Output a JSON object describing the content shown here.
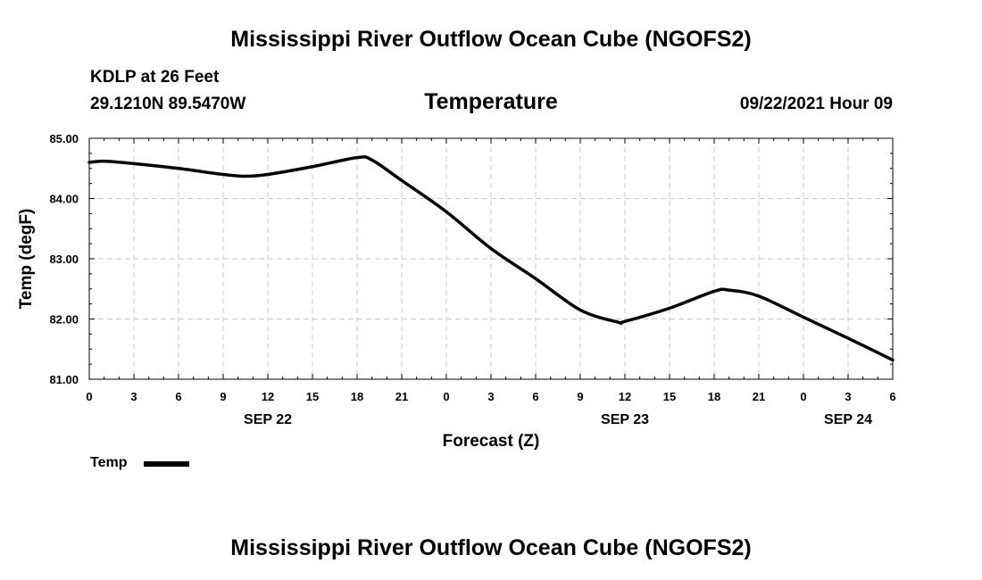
{
  "header": {
    "title": "Mississippi River Outflow Ocean Cube (NGOFS2)",
    "station": "KDLP at 26 Feet",
    "coords": "29.1210N  89.5470W",
    "variable": "Temperature",
    "datetime": "09/22/2021 Hour 09"
  },
  "footer": {
    "title": "Mississippi River Outflow Ocean Cube (NGOFS2)"
  },
  "legend": {
    "label": "Temp"
  },
  "chart_data": {
    "type": "line",
    "title": "Temperature",
    "xlabel": "Forecast (Z)",
    "ylabel": "Temp (degF)",
    "xlim": [
      0,
      54
    ],
    "ylim": [
      81.0,
      85.0
    ],
    "grid": true,
    "x_tick_values": [
      0,
      3,
      6,
      9,
      12,
      15,
      18,
      21,
      24,
      27,
      30,
      33,
      36,
      39,
      42,
      45,
      48,
      51,
      54
    ],
    "x_tick_labels": [
      "0",
      "3",
      "6",
      "9",
      "12",
      "15",
      "18",
      "21",
      "0",
      "3",
      "6",
      "9",
      "12",
      "15",
      "18",
      "21",
      "0",
      "3",
      "6"
    ],
    "date_labels": [
      {
        "hour": 12,
        "label": "SEP 22"
      },
      {
        "hour": 36,
        "label": "SEP 23"
      },
      {
        "hour": 51,
        "label": "SEP 24"
      }
    ],
    "y_tick_values": [
      81.0,
      82.0,
      83.0,
      84.0,
      85.0
    ],
    "y_tick_labels": [
      "81.00",
      "82.00",
      "83.00",
      "84.00",
      "85.00"
    ],
    "series": [
      {
        "name": "Temp",
        "color": "#000000",
        "x": [
          0,
          1,
          3,
          6,
          9,
          10.5,
          12,
          15,
          18,
          19,
          21,
          24,
          27,
          30,
          33,
          35.5,
          36,
          39,
          42,
          43,
          45,
          48,
          51,
          54
        ],
        "y": [
          84.6,
          84.62,
          84.58,
          84.5,
          84.4,
          84.37,
          84.4,
          84.53,
          84.68,
          84.64,
          84.3,
          83.78,
          83.17,
          82.67,
          82.15,
          81.95,
          81.96,
          82.18,
          82.46,
          82.48,
          82.38,
          82.03,
          81.68,
          81.32
        ]
      }
    ]
  }
}
